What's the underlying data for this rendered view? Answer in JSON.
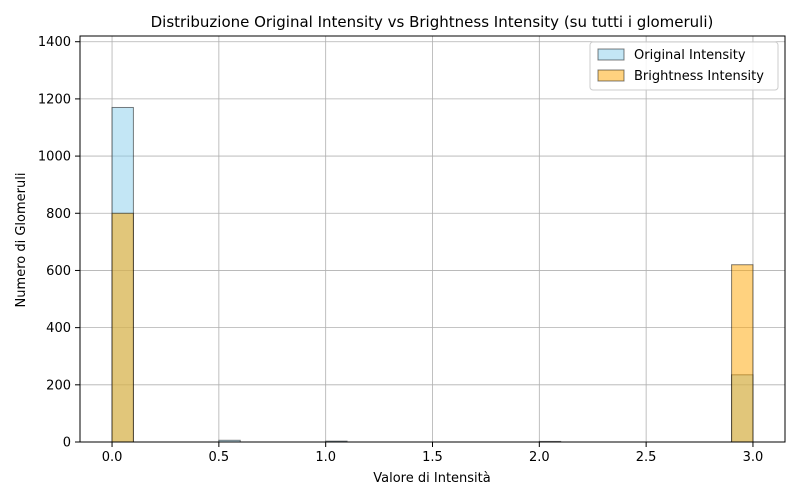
{
  "chart_data": {
    "type": "bar",
    "title": "Distribuzione Original Intensity vs Brightness Intensity (su tutti i glomeruli)",
    "xlabel": "Valore di Intensità",
    "ylabel": "Numero di Glomeruli",
    "xlim": [
      -0.15,
      3.15
    ],
    "ylim": [
      0,
      1420
    ],
    "xticks": [
      0.0,
      0.5,
      1.0,
      1.5,
      2.0,
      2.5,
      3.0
    ],
    "xtick_labels": [
      "0.0",
      "0.5",
      "1.0",
      "1.5",
      "2.0",
      "2.5",
      "3.0"
    ],
    "yticks": [
      0,
      200,
      400,
      600,
      800,
      1000,
      1200,
      1400
    ],
    "ytick_labels": [
      "0",
      "200",
      "400",
      "600",
      "800",
      "1000",
      "1200",
      "1400"
    ],
    "grid": true,
    "legend_position": "top-right",
    "bin_width": 0.1,
    "series": [
      {
        "name": "Original Intensity",
        "color": "#87ceeb",
        "bins": [
          {
            "x0": 0.0,
            "count": 1170
          },
          {
            "x0": 0.5,
            "count": 6
          },
          {
            "x0": 1.0,
            "count": 3
          },
          {
            "x0": 2.0,
            "count": 2
          },
          {
            "x0": 2.9,
            "count": 235
          }
        ]
      },
      {
        "name": "Brightness Intensity",
        "color": "#ffa500",
        "bins": [
          {
            "x0": 0.0,
            "count": 800
          },
          {
            "x0": 2.9,
            "count": 620
          }
        ]
      }
    ]
  }
}
